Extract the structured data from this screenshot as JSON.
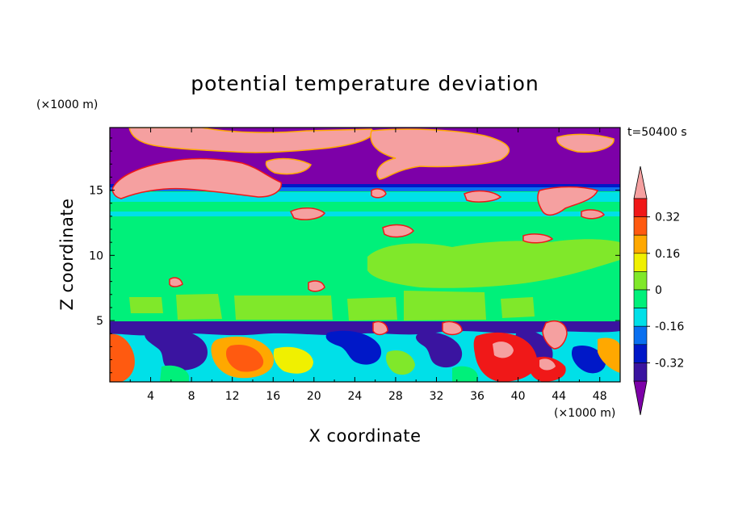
{
  "chart_data": {
    "type": "heatmap",
    "title": "potential temperature deviation",
    "xlabel": "X coordinate",
    "ylabel": "Z coordinate",
    "x_unit": "(×1000 m)",
    "y_unit": "(×1000 m)",
    "time_label": "t=50400 s",
    "xlim": [
      0,
      50
    ],
    "ylim": [
      0.3,
      19.8
    ],
    "x_ticks": [
      "4",
      "8",
      "12",
      "16",
      "20",
      "24",
      "28",
      "32",
      "36",
      "40",
      "44",
      "48"
    ],
    "y_ticks": [
      "5",
      "10",
      "15"
    ],
    "colorbar": {
      "tick_labels": [
        "0.32",
        "0.16",
        "0",
        "-0.16",
        "-0.32"
      ],
      "levels": [
        -0.4,
        -0.32,
        -0.24,
        -0.16,
        -0.08,
        0,
        0.08,
        0.16,
        0.24,
        0.32,
        0.4
      ],
      "colors": [
        "#7d00a8",
        "#3a14a0",
        "#0018c8",
        "#0a70f0",
        "#00e0e8",
        "#00f07a",
        "#80e82a",
        "#f0f000",
        "#ffa800",
        "#ff5a10",
        "#f01818",
        "#f5a0a0"
      ]
    }
  }
}
